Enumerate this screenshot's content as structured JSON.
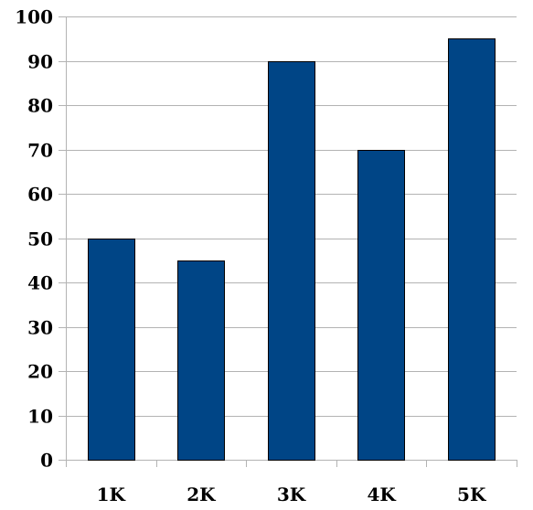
{
  "chart_data": {
    "type": "bar",
    "categories": [
      "1K",
      "2K",
      "3K",
      "4K",
      "5K"
    ],
    "values": [
      50,
      45,
      90,
      70,
      95
    ],
    "title": "",
    "xlabel": "",
    "ylabel": "",
    "ylim": [
      0,
      100
    ],
    "yticks": [
      0,
      10,
      20,
      30,
      40,
      50,
      60,
      70,
      80,
      90,
      100
    ],
    "grid": true,
    "legend": "none",
    "bar_color": "#004586"
  }
}
